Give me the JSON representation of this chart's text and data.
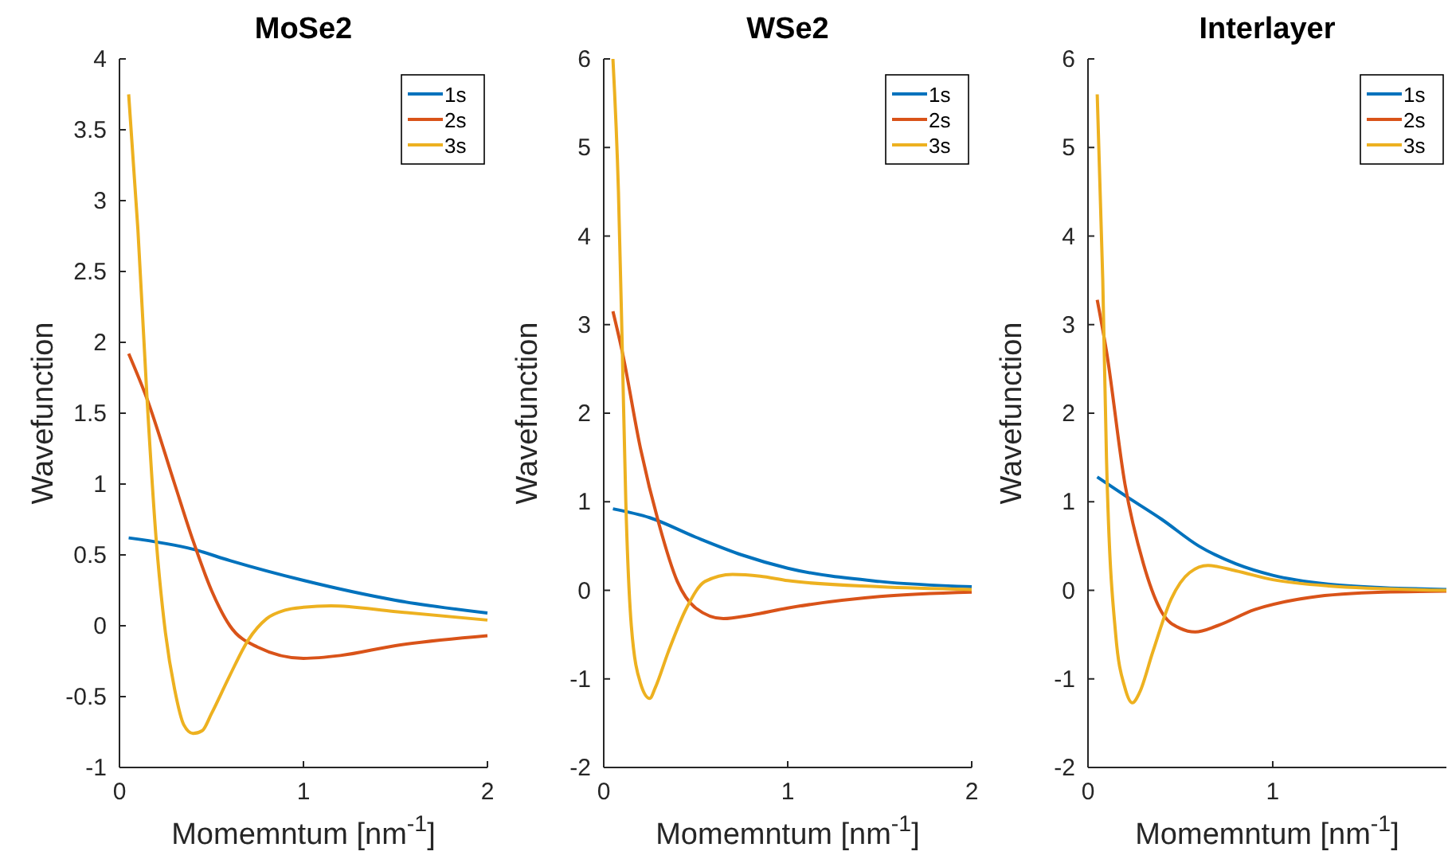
{
  "chart_data": [
    {
      "type": "line",
      "title": "MoSe2",
      "xlabel": "Momemntum [nm$^{-1}$]",
      "ylabel": "Wavefunction",
      "xlim": [
        0,
        2
      ],
      "xticks": [
        0,
        1,
        2
      ],
      "ylim": [
        -1,
        4
      ],
      "yticks": [
        -1,
        -0.5,
        0,
        0.5,
        1,
        1.5,
        2,
        2.5,
        3,
        3.5,
        4
      ],
      "legend": "top right",
      "series": [
        {
          "name": "1s",
          "color": "#0072bd",
          "x": [
            0.05,
            0.4,
            0.6,
            1.0,
            1.5,
            2
          ],
          "values": [
            0.62,
            0.54,
            0.46,
            0.32,
            0.18,
            0.09
          ]
        },
        {
          "name": "2s",
          "color": "#d95319",
          "x": [
            0.05,
            0.15,
            0.3,
            0.4,
            0.5,
            0.6,
            0.75,
            1.0,
            1.2,
            1.5,
            2
          ],
          "values": [
            1.92,
            1.6,
            1.0,
            0.6,
            0.25,
            0.0,
            -0.15,
            -0.23,
            -0.21,
            -0.14,
            -0.07
          ]
        },
        {
          "name": "3s",
          "color": "#edb120",
          "x": [
            0.05,
            0.1,
            0.15,
            0.2,
            0.25,
            0.3,
            0.35,
            0.4,
            0.45,
            0.5,
            0.6,
            0.7,
            0.8,
            0.9,
            1.0,
            1.15,
            1.5,
            2
          ],
          "values": [
            3.75,
            2.8,
            1.6,
            0.6,
            -0.05,
            -0.45,
            -0.7,
            -0.76,
            -0.74,
            -0.62,
            -0.35,
            -0.1,
            0.05,
            0.11,
            0.13,
            0.14,
            0.1,
            0.04
          ]
        }
      ]
    },
    {
      "type": "line",
      "title": "WSe2",
      "xlabel": "Momemntum [nm$^{-1}$]",
      "ylabel": "Wavefunction",
      "xlim": [
        0,
        2
      ],
      "xticks": [
        0,
        1,
        2
      ],
      "ylim": [
        -2,
        6
      ],
      "yticks": [
        -2,
        -1,
        0,
        1,
        2,
        3,
        4,
        5,
        6
      ],
      "legend": "top right",
      "series": [
        {
          "name": "1s",
          "color": "#0072bd",
          "x": [
            0.05,
            0.25,
            0.5,
            0.75,
            1.0,
            1.5,
            2
          ],
          "values": [
            0.92,
            0.82,
            0.6,
            0.4,
            0.25,
            0.1,
            0.04
          ]
        },
        {
          "name": "2s",
          "color": "#d95319",
          "x": [
            0.05,
            0.1,
            0.2,
            0.3,
            0.4,
            0.5,
            0.65,
            0.8,
            1.0,
            1.5,
            2
          ],
          "values": [
            3.15,
            2.7,
            1.6,
            0.75,
            0.1,
            -0.2,
            -0.32,
            -0.28,
            -0.2,
            -0.07,
            -0.02
          ]
        },
        {
          "name": "3s",
          "color": "#edb120",
          "x": [
            0.05,
            0.08,
            0.1,
            0.12,
            0.15,
            0.2,
            0.25,
            0.28,
            0.35,
            0.45,
            0.55,
            0.7,
            0.85,
            1.0,
            1.5,
            2
          ],
          "values": [
            6.0,
            4.5,
            2.8,
            1.0,
            -0.4,
            -1.05,
            -1.22,
            -1.1,
            -0.7,
            -0.2,
            0.1,
            0.18,
            0.16,
            0.11,
            0.04,
            0.01
          ]
        }
      ]
    },
    {
      "type": "line",
      "title": "Interlayer",
      "xlabel": "Momemntum [nm$^{-1}$]",
      "ylabel": "Wavefunction",
      "xlim": [
        0,
        1.94
      ],
      "xticks": [
        0,
        1
      ],
      "ylim": [
        -2,
        6
      ],
      "yticks": [
        -2,
        -1,
        0,
        1,
        2,
        3,
        4,
        5,
        6
      ],
      "legend": "top right",
      "series": [
        {
          "name": "1s",
          "color": "#0072bd",
          "x": [
            0.05,
            0.2,
            0.4,
            0.6,
            0.8,
            1.0,
            1.3,
            1.6,
            1.94
          ],
          "values": [
            1.28,
            1.07,
            0.8,
            0.5,
            0.3,
            0.17,
            0.07,
            0.03,
            0.01
          ]
        },
        {
          "name": "2s",
          "color": "#d95319",
          "x": [
            0.05,
            0.1,
            0.2,
            0.3,
            0.4,
            0.5,
            0.58,
            0.7,
            0.9,
            1.2,
            1.6,
            1.94
          ],
          "values": [
            3.28,
            2.7,
            1.2,
            0.3,
            -0.25,
            -0.43,
            -0.47,
            -0.4,
            -0.22,
            -0.08,
            -0.02,
            -0.01
          ]
        },
        {
          "name": "3s",
          "color": "#edb120",
          "x": [
            0.05,
            0.08,
            0.1,
            0.15,
            0.2,
            0.24,
            0.28,
            0.35,
            0.45,
            0.55,
            0.65,
            0.8,
            1.0,
            1.3,
            1.94
          ],
          "values": [
            5.6,
            3.5,
            1.5,
            -0.5,
            -1.1,
            -1.27,
            -1.15,
            -0.7,
            -0.1,
            0.2,
            0.28,
            0.22,
            0.12,
            0.05,
            0.0
          ]
        }
      ]
    }
  ]
}
